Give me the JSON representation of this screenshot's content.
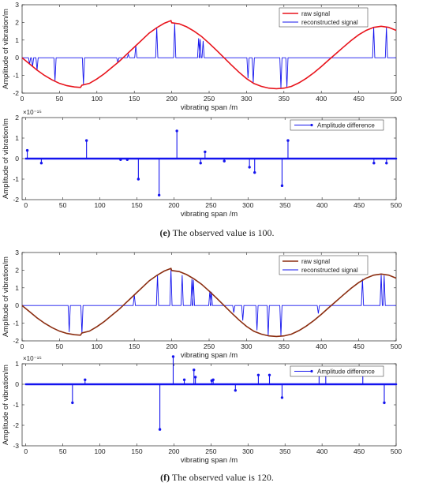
{
  "captions": {
    "e": {
      "letter": "(e)",
      "text": " The observed value is 100."
    },
    "f": {
      "letter": "(f)",
      "text": " The observed value is 120."
    }
  },
  "colors": {
    "raw_e": "#e8141c",
    "raw_f": "#8b2d10",
    "reconstructed": "#1515ee",
    "difference": "#1515ee"
  },
  "chart_data": [
    {
      "id": "e-signal",
      "type": "line",
      "xlabel": "vibrating span /m",
      "ylabel": "Amplitude of vibration/m",
      "xlim": [
        0,
        500
      ],
      "ylim": [
        -2,
        3
      ],
      "xticks": [
        0,
        50,
        100,
        150,
        200,
        250,
        300,
        350,
        400,
        450,
        500
      ],
      "yticks": [
        -2,
        -1,
        0,
        1,
        2,
        3
      ],
      "grid": false,
      "legend_position": "top-right",
      "series": [
        {
          "name": "raw signal",
          "color": "#e8141c",
          "width": 1.6,
          "x": [
            0,
            10,
            20,
            30,
            40,
            50,
            60,
            70,
            78,
            80,
            90,
            100,
            110,
            120,
            130,
            140,
            150,
            160,
            170,
            180,
            190,
            199,
            200,
            210,
            220,
            230,
            240,
            250,
            260,
            270,
            280,
            290,
            300,
            310,
            320,
            330,
            340,
            350,
            360,
            370,
            380,
            390,
            400,
            410,
            420,
            430,
            440,
            450,
            460,
            470,
            480,
            490,
            500
          ],
          "y": [
            0,
            -0.35,
            -0.7,
            -1.0,
            -1.25,
            -1.45,
            -1.58,
            -1.65,
            -1.68,
            -1.55,
            -1.45,
            -1.2,
            -0.9,
            -0.55,
            -0.2,
            0.2,
            0.6,
            1.0,
            1.4,
            1.7,
            1.95,
            2.1,
            1.98,
            1.92,
            1.75,
            1.5,
            1.2,
            0.82,
            0.42,
            0.0,
            -0.42,
            -0.82,
            -1.18,
            -1.46,
            -1.62,
            -1.72,
            -1.75,
            -1.72,
            -1.62,
            -1.42,
            -1.16,
            -0.85,
            -0.5,
            -0.12,
            0.25,
            0.62,
            0.98,
            1.3,
            1.55,
            1.72,
            1.78,
            1.72,
            1.55
          ]
        },
        {
          "name": "reconstructed signal",
          "color": "#1515ee",
          "width": 0.9,
          "baseline": 0,
          "spike_x": [
            10,
            14,
            20,
            44,
            82,
            128,
            142,
            152,
            180,
            204,
            236,
            238,
            242,
            302,
            309,
            346,
            354,
            470,
            487
          ],
          "spike_y": [
            -0.35,
            -0.5,
            -0.7,
            -1.3,
            -1.5,
            -0.3,
            0.2,
            0.7,
            1.7,
            1.92,
            1.1,
            1.05,
            0.95,
            -1.16,
            -1.4,
            -1.72,
            -1.7,
            1.72,
            1.74
          ]
        }
      ]
    },
    {
      "id": "e-difference",
      "type": "stem",
      "xlabel": "vibrating span /m",
      "ylabel": "Amplitude of vibration/m",
      "exponent": "×10⁻¹⁵",
      "xlim": [
        -5,
        500
      ],
      "ylim": [
        -2,
        2
      ],
      "xticks": [
        0,
        50,
        100,
        150,
        200,
        250,
        300,
        350,
        400,
        450,
        500
      ],
      "yticks": [
        -2,
        -1,
        0,
        1,
        2
      ],
      "grid": false,
      "legend_position": "top-right",
      "series": [
        {
          "name": "Amplitude difference",
          "color": "#1515ee",
          "x": [
            2,
            21,
            82,
            128,
            137,
            152,
            180,
            204,
            236,
            242,
            268,
            302,
            309,
            346,
            354,
            470,
            487
          ],
          "y": [
            0.4,
            -0.22,
            0.88,
            -0.05,
            -0.05,
            -1.0,
            -1.78,
            1.35,
            -0.22,
            0.33,
            -0.12,
            -0.42,
            -0.68,
            -1.32,
            0.88,
            -0.22,
            -0.22
          ]
        }
      ]
    },
    {
      "id": "f-signal",
      "type": "line",
      "xlabel": "vibrating span /m",
      "ylabel": "Amplitude of vibration/m",
      "xlim": [
        0,
        500
      ],
      "ylim": [
        -2,
        3
      ],
      "xticks": [
        0,
        50,
        100,
        150,
        200,
        250,
        300,
        350,
        400,
        450,
        500
      ],
      "yticks": [
        -2,
        -1,
        0,
        1,
        2,
        3
      ],
      "grid": false,
      "legend_position": "top-right",
      "series": [
        {
          "name": "raw signal",
          "color": "#8b2d10",
          "width": 1.6,
          "x": [
            0,
            10,
            20,
            30,
            40,
            50,
            60,
            70,
            78,
            80,
            90,
            100,
            110,
            120,
            130,
            140,
            150,
            160,
            170,
            180,
            190,
            199,
            200,
            210,
            220,
            230,
            240,
            250,
            260,
            270,
            280,
            290,
            300,
            310,
            320,
            330,
            340,
            350,
            360,
            370,
            380,
            390,
            400,
            410,
            420,
            430,
            440,
            450,
            460,
            470,
            480,
            490,
            500
          ],
          "y": [
            0,
            -0.35,
            -0.7,
            -1.0,
            -1.25,
            -1.45,
            -1.58,
            -1.65,
            -1.68,
            -1.55,
            -1.45,
            -1.2,
            -0.9,
            -0.55,
            -0.2,
            0.2,
            0.6,
            1.0,
            1.4,
            1.7,
            1.95,
            2.1,
            1.98,
            1.92,
            1.75,
            1.5,
            1.2,
            0.82,
            0.42,
            0.0,
            -0.42,
            -0.82,
            -1.18,
            -1.46,
            -1.62,
            -1.72,
            -1.75,
            -1.72,
            -1.62,
            -1.42,
            -1.16,
            -0.85,
            -0.5,
            -0.12,
            0.25,
            0.62,
            0.98,
            1.3,
            1.55,
            1.72,
            1.78,
            1.72,
            1.55
          ]
        },
        {
          "name": "reconstructed signal",
          "color": "#1515ee",
          "width": 0.9,
          "baseline": 0,
          "spike_x": [
            63,
            80,
            150,
            181,
            199,
            214,
            227,
            229,
            251,
            253,
            283,
            295,
            314,
            329,
            346,
            396,
            405,
            455,
            480,
            484
          ],
          "spike_y": [
            -1.5,
            -1.6,
            0.6,
            1.72,
            2.05,
            1.72,
            1.5,
            1.45,
            0.82,
            0.78,
            -0.4,
            -0.85,
            -1.4,
            -1.72,
            -1.72,
            -0.45,
            0.0,
            1.5,
            1.74,
            1.7
          ]
        }
      ]
    },
    {
      "id": "f-difference",
      "type": "stem",
      "xlabel": "vibrating span /m",
      "ylabel": "Amplitude of vibration/m",
      "exponent": "×10⁻¹⁵",
      "xlim": [
        -5,
        500
      ],
      "ylim": [
        -3,
        1
      ],
      "xticks": [
        0,
        50,
        100,
        150,
        200,
        250,
        300,
        350,
        400,
        450,
        500
      ],
      "yticks": [
        -3,
        -2,
        -1,
        0,
        1
      ],
      "grid": false,
      "legend_position": "top-right",
      "series": [
        {
          "name": "Amplitude difference",
          "color": "#1515ee",
          "x": [
            63,
            80,
            181,
            199,
            214,
            227,
            229,
            251,
            253,
            283,
            314,
            329,
            346,
            396,
            405,
            455,
            484
          ],
          "y": [
            -0.9,
            0.22,
            -2.2,
            1.35,
            0.22,
            0.7,
            0.35,
            0.18,
            0.22,
            -0.3,
            0.45,
            0.45,
            -0.65,
            0.8,
            0.5,
            0.7,
            -0.9
          ]
        }
      ]
    }
  ]
}
